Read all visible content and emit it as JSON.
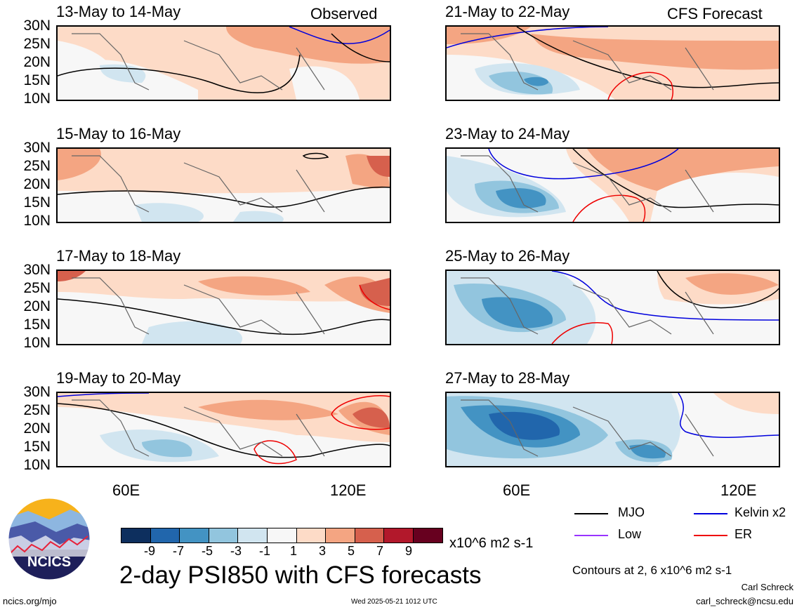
{
  "panels": [
    {
      "title": "13-May to 14-May",
      "tag": "Observed"
    },
    {
      "title": "15-May to 16-May",
      "tag": ""
    },
    {
      "title": "17-May to 18-May",
      "tag": ""
    },
    {
      "title": "19-May to 20-May",
      "tag": ""
    },
    {
      "title": "21-May to 22-May",
      "tag": "CFS Forecast"
    },
    {
      "title": "23-May to 24-May",
      "tag": ""
    },
    {
      "title": "25-May to 26-May",
      "tag": ""
    },
    {
      "title": "27-May to 28-May",
      "tag": ""
    }
  ],
  "lat_labels": [
    "30N",
    "25N",
    "20N",
    "15N",
    "10N"
  ],
  "lon_labels": [
    "60E",
    "120E"
  ],
  "legend": {
    "mjo": "MJO",
    "kelvin": "Kelvin x2",
    "low": "Low",
    "er": "ER"
  },
  "colorbar": {
    "ticks": [
      "-9",
      "-7",
      "-5",
      "-3",
      "-1",
      "1",
      "3",
      "5",
      "7",
      "9"
    ],
    "units": "x10^6 m2 s-1",
    "colors": [
      "#0d2f5e",
      "#2166ac",
      "#4393c3",
      "#92c5de",
      "#d1e5f0",
      "#f7f7f7",
      "#fddbc7",
      "#f4a582",
      "#d6604d",
      "#b2182b",
      "#67001f"
    ]
  },
  "title": "2-day PSI850 with CFS forecasts",
  "contours_note": "Contours at 2, 6 x10^6 m2 s-1",
  "author": "Carl Schreck",
  "email": "carl_schreck@ncsu.edu",
  "site": "ncics.org/mjo",
  "timestamp": "Wed 2025-05-21 1012 UTC",
  "logo_text": "NCICS",
  "line_colors": {
    "mjo": "#000000",
    "kelvin": "#0000dd",
    "low": "#9933ff",
    "er": "#ee0000"
  }
}
